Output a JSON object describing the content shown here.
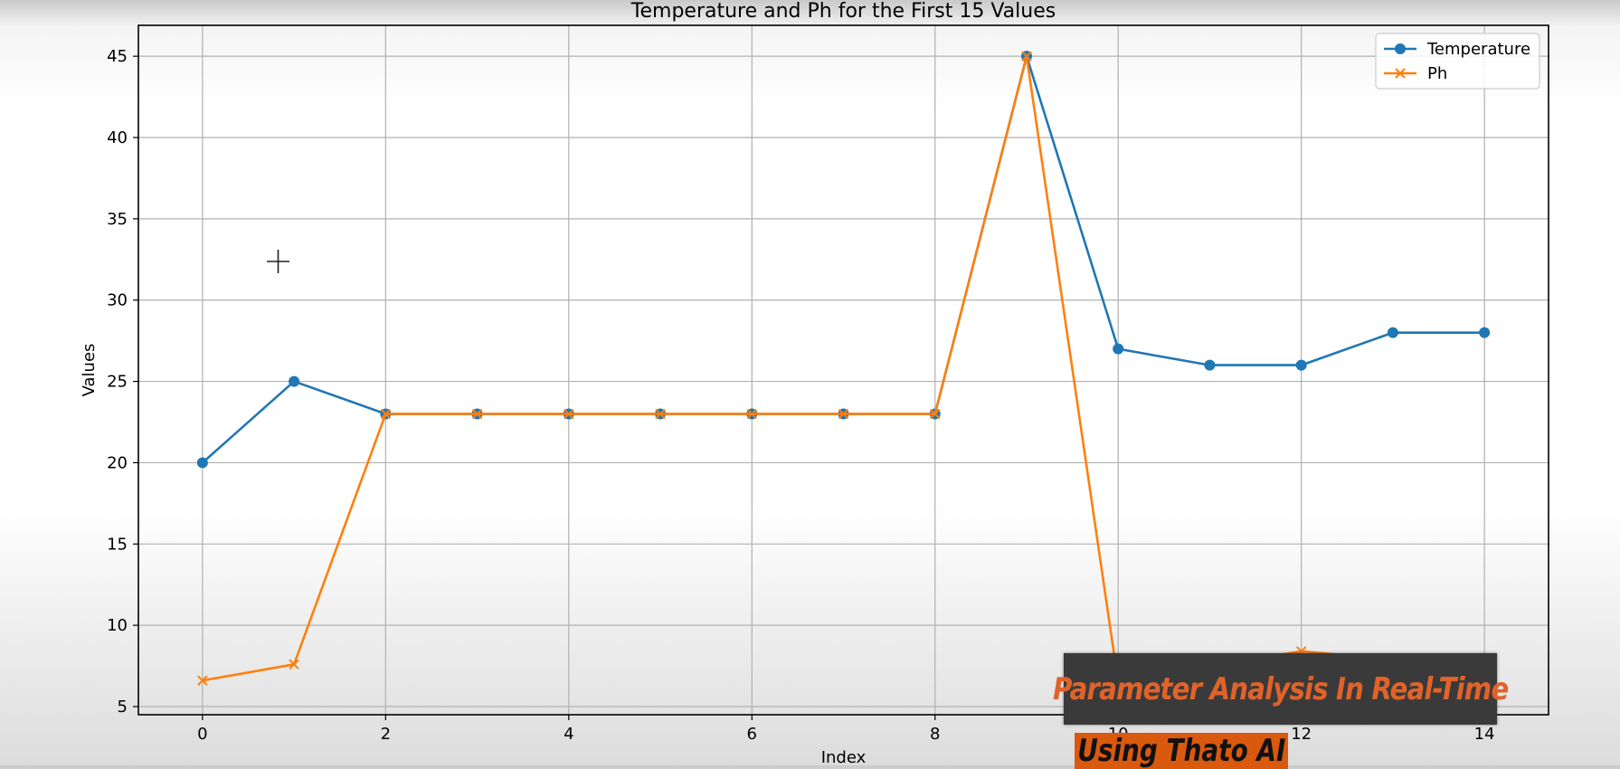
{
  "chart_data": {
    "type": "line",
    "title": "Temperature and Ph for the First 15 Values",
    "xlabel": "Index",
    "ylabel": "Values",
    "x": [
      0,
      1,
      2,
      3,
      4,
      5,
      6,
      7,
      8,
      9,
      10,
      11,
      12,
      13,
      14
    ],
    "xlim": [
      -0.7,
      14.7
    ],
    "ylim": [
      4.5,
      46.9
    ],
    "xticks": [
      0,
      2,
      4,
      6,
      8,
      10,
      12,
      14
    ],
    "yticks": [
      5,
      10,
      15,
      20,
      25,
      30,
      35,
      40,
      45
    ],
    "grid": true,
    "legend_position": "top-right",
    "series": [
      {
        "name": "Temperature",
        "marker": "circle",
        "color": "#1f77b4",
        "values": [
          20,
          25,
          23,
          23,
          23,
          23,
          23,
          23,
          23,
          45,
          27,
          26,
          26,
          28,
          28
        ]
      },
      {
        "name": "Ph",
        "marker": "x",
        "color": "#ff7f0e",
        "values": [
          6.6,
          7.6,
          23,
          23,
          23,
          23,
          23,
          23,
          23,
          45,
          6.5,
          7.5,
          8.4,
          7.9,
          7.9
        ]
      }
    ]
  },
  "overlay": {
    "banner_text": "Parameter Analysis In Real-Time",
    "banner_sub_text": "Using Thato AI"
  },
  "cursor_icon": "crosshair-icon"
}
